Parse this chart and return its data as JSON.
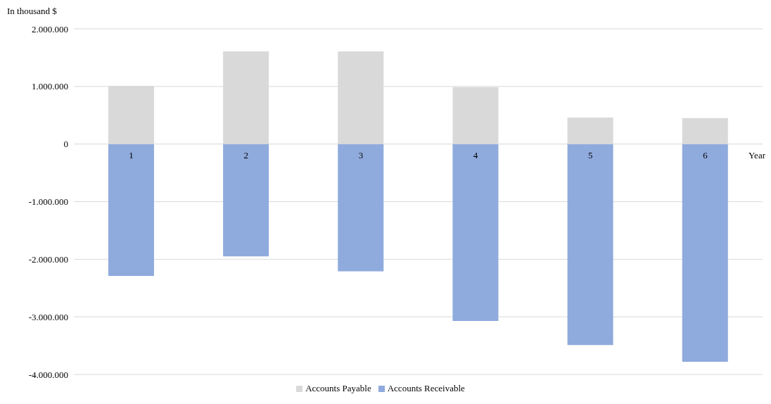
{
  "chart_data": {
    "type": "bar",
    "ylabel": "In thousand $",
    "xlabel": "Year",
    "categories": [
      "1",
      "2",
      "3",
      "4",
      "5",
      "6"
    ],
    "series": [
      {
        "name": "Accounts Receivable",
        "color": "#8faadc",
        "values": [
          -2290000,
          -1950000,
          -2210000,
          -3070000,
          -3490000,
          -3780000
        ]
      },
      {
        "name": "Accounts Payable",
        "color": "#d9d9d9",
        "values": [
          1010000,
          1610000,
          1610000,
          990000,
          460000,
          450000
        ]
      }
    ],
    "stacked": true,
    "ylim": [
      -4000000,
      2000000
    ],
    "yticks": [
      {
        "value": -4000000,
        "label": "-4.000.000"
      },
      {
        "value": -3000000,
        "label": "-3.000.000"
      },
      {
        "value": -2000000,
        "label": "-2.000.000"
      },
      {
        "value": -1000000,
        "label": "-1.000.000"
      },
      {
        "value": 0,
        "label": "0"
      },
      {
        "value": 1000000,
        "label": "1.000.000"
      },
      {
        "value": 2000000,
        "label": "2.000.000"
      }
    ],
    "grid": "y",
    "legend": "bottom"
  }
}
